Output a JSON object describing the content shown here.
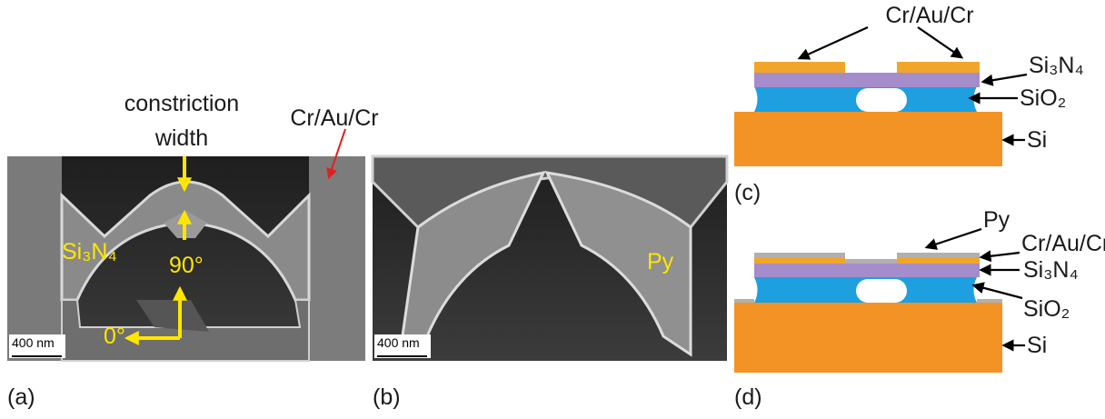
{
  "panel_a": {
    "label": "(a)",
    "scale_bar": "400 nm",
    "constriction_width": [
      "constriction",
      "width"
    ],
    "metal": "Cr/Au/Cr",
    "nitride": "Si₃N₄",
    "angle_90": "90°",
    "angle_0": "0°"
  },
  "panel_b": {
    "label": "(b)",
    "scale_bar": "400 nm",
    "material": "Py"
  },
  "panel_c": {
    "label": "(c)",
    "metal": "Cr/Au/Cr",
    "nitride": "Si₃N₄",
    "oxide": "SiO₂",
    "substrate": "Si"
  },
  "panel_d": {
    "label": "(d)",
    "magnet": "Py",
    "metal": "Cr/Au/Cr",
    "nitride": "Si₃N₄",
    "oxide": "SiO₂",
    "substrate": "Si"
  }
}
